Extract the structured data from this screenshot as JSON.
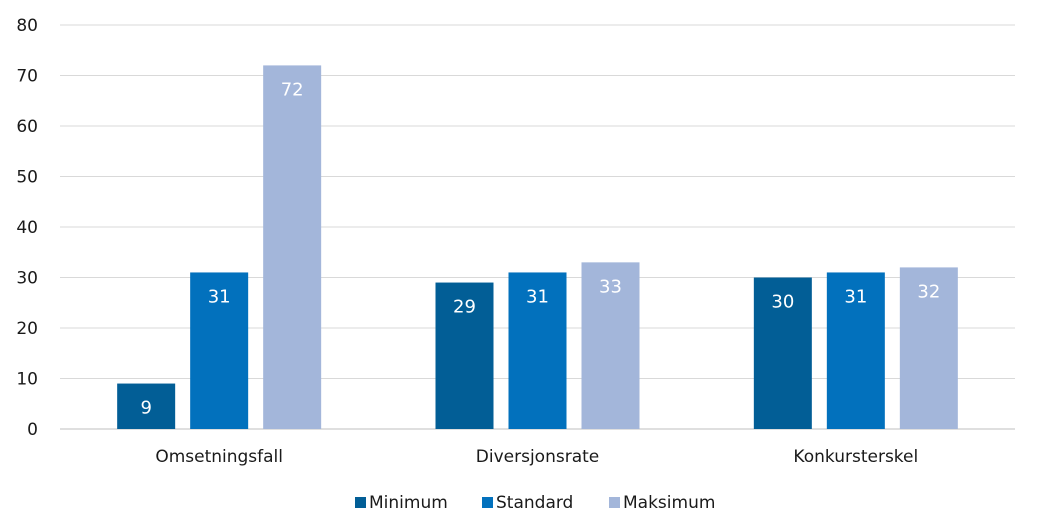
{
  "chart_data": {
    "type": "bar",
    "categories": [
      "Omsetningsfall",
      "Diversjonsrate",
      "Konkursterskel"
    ],
    "series": [
      {
        "name": "Minimum",
        "values": [
          9,
          29,
          30
        ],
        "labels": [
          "9",
          "29",
          "30"
        ],
        "color": "#025e96"
      },
      {
        "name": "Standard",
        "values": [
          31,
          31,
          31
        ],
        "labels": [
          "31",
          "31",
          "31"
        ],
        "color": "#0271bd"
      },
      {
        "name": "Maksimum",
        "values": [
          72,
          33,
          32
        ],
        "labels": [
          "72",
          "33",
          "32"
        ],
        "color": "#a3b6da"
      }
    ],
    "ylim": [
      0,
      80
    ],
    "yticks": [
      0,
      10,
      20,
      30,
      40,
      50,
      60,
      70,
      80
    ],
    "grid": true,
    "legend": "bottom-center",
    "title": "",
    "xlabel": "",
    "ylabel": ""
  }
}
